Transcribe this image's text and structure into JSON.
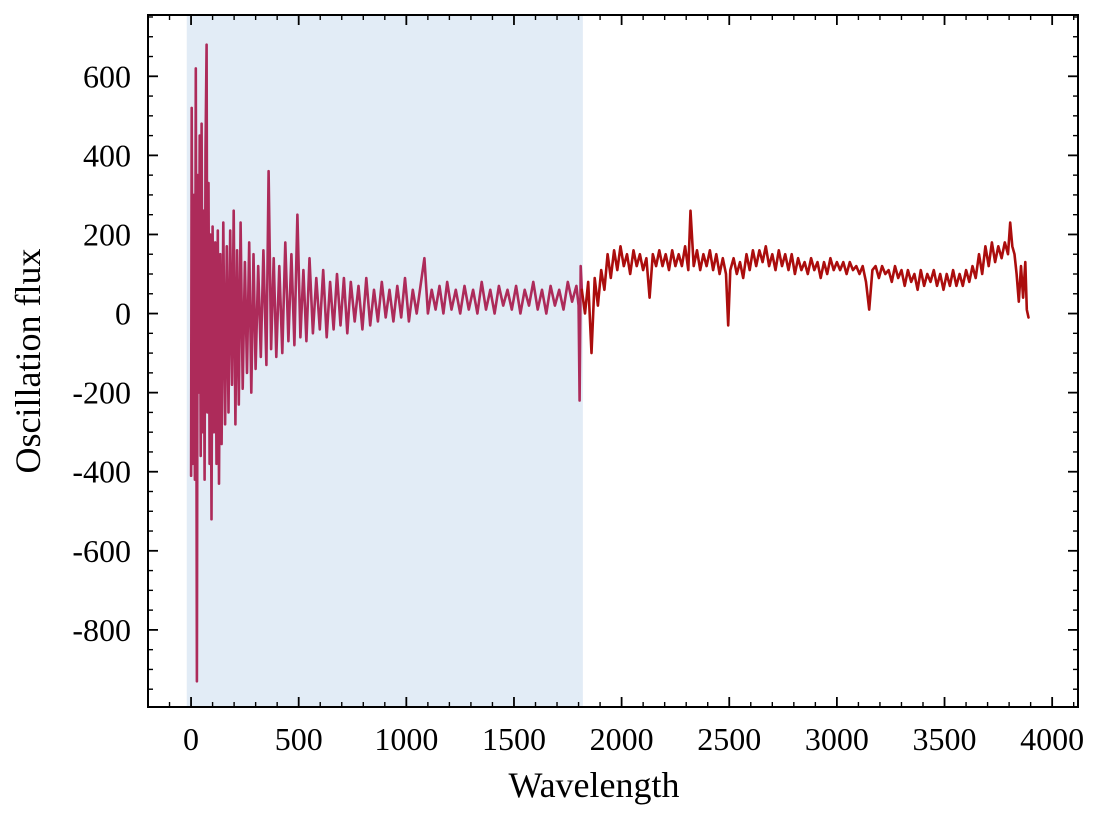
{
  "chart_data": {
    "type": "line",
    "title": "",
    "xlabel": "Wavelength",
    "ylabel": "Oscillation flux",
    "xlim": [
      -200,
      4120
    ],
    "ylim": [
      -995,
      755
    ],
    "xticks": [
      0,
      500,
      1000,
      1500,
      2000,
      2500,
      3000,
      3500,
      4000
    ],
    "xtick_labels": [
      "0",
      "500",
      "1000",
      "1500",
      "2000",
      "2500",
      "3000",
      "3500",
      "4000"
    ],
    "yticks": [
      600,
      400,
      200,
      0,
      -200,
      -400,
      -600,
      -800
    ],
    "ytick_labels": [
      "600",
      "400",
      "200",
      "0",
      "-200",
      "-400",
      "-600",
      "-800"
    ],
    "grid": false,
    "legend": "none",
    "shaded_region": {
      "x": [
        -20,
        1820
      ],
      "color": "#e2ecf6"
    },
    "series": [
      {
        "color": "#ad2b5a",
        "x_range": [
          0,
          1815
        ],
        "points": [
          [
            0,
            -410
          ],
          [
            3,
            520
          ],
          [
            8,
            -380
          ],
          [
            12,
            300
          ],
          [
            18,
            -420
          ],
          [
            22,
            620
          ],
          [
            27,
            -930
          ],
          [
            31,
            350
          ],
          [
            36,
            -200
          ],
          [
            40,
            450
          ],
          [
            45,
            -360
          ],
          [
            49,
            480
          ],
          [
            54,
            -300
          ],
          [
            58,
            260
          ],
          [
            63,
            -420
          ],
          [
            67,
            410
          ],
          [
            72,
            680
          ],
          [
            76,
            -250
          ],
          [
            81,
            330
          ],
          [
            86,
            -380
          ],
          [
            90,
            200
          ],
          [
            95,
            -520
          ],
          [
            100,
            220
          ],
          [
            106,
            -300
          ],
          [
            112,
            180
          ],
          [
            118,
            -380
          ],
          [
            124,
            210
          ],
          [
            130,
            -430
          ],
          [
            136,
            150
          ],
          [
            142,
            -330
          ],
          [
            150,
            230
          ],
          [
            158,
            -280
          ],
          [
            166,
            170
          ],
          [
            174,
            -250
          ],
          [
            182,
            210
          ],
          [
            190,
            -180
          ],
          [
            198,
            260
          ],
          [
            206,
            -280
          ],
          [
            214,
            160
          ],
          [
            222,
            -230
          ],
          [
            230,
            230
          ],
          [
            240,
            -190
          ],
          [
            250,
            130
          ],
          [
            260,
            -150
          ],
          [
            270,
            180
          ],
          [
            280,
            -200
          ],
          [
            290,
            150
          ],
          [
            300,
            -140
          ],
          [
            312,
            120
          ],
          [
            324,
            -110
          ],
          [
            336,
            160
          ],
          [
            350,
            -130
          ],
          [
            360,
            360
          ],
          [
            372,
            -90
          ],
          [
            384,
            140
          ],
          [
            396,
            -110
          ],
          [
            410,
            120
          ],
          [
            424,
            -100
          ],
          [
            438,
            180
          ],
          [
            452,
            -70
          ],
          [
            466,
            150
          ],
          [
            480,
            -80
          ],
          [
            494,
            250
          ],
          [
            508,
            -60
          ],
          [
            522,
            110
          ],
          [
            536,
            -70
          ],
          [
            550,
            140
          ],
          [
            566,
            -50
          ],
          [
            582,
            90
          ],
          [
            598,
            -40
          ],
          [
            614,
            110
          ],
          [
            630,
            -60
          ],
          [
            646,
            80
          ],
          [
            662,
            -40
          ],
          [
            678,
            100
          ],
          [
            694,
            -30
          ],
          [
            710,
            90
          ],
          [
            726,
            -50
          ],
          [
            742,
            80
          ],
          [
            760,
            -20
          ],
          [
            778,
            70
          ],
          [
            796,
            -40
          ],
          [
            814,
            90
          ],
          [
            832,
            -30
          ],
          [
            850,
            60
          ],
          [
            868,
            -20
          ],
          [
            886,
            80
          ],
          [
            904,
            -10
          ],
          [
            922,
            60
          ],
          [
            940,
            -20
          ],
          [
            958,
            70
          ],
          [
            976,
            -10
          ],
          [
            994,
            90
          ],
          [
            1012,
            -20
          ],
          [
            1030,
            60
          ],
          [
            1048,
            0
          ],
          [
            1066,
            70
          ],
          [
            1084,
            140
          ],
          [
            1100,
            0
          ],
          [
            1118,
            60
          ],
          [
            1136,
            10
          ],
          [
            1154,
            70
          ],
          [
            1172,
            0
          ],
          [
            1190,
            80
          ],
          [
            1210,
            10
          ],
          [
            1230,
            60
          ],
          [
            1250,
            0
          ],
          [
            1270,
            70
          ],
          [
            1290,
            10
          ],
          [
            1310,
            60
          ],
          [
            1330,
            0
          ],
          [
            1350,
            80
          ],
          [
            1370,
            10
          ],
          [
            1390,
            60
          ],
          [
            1410,
            0
          ],
          [
            1430,
            70
          ],
          [
            1450,
            20
          ],
          [
            1470,
            60
          ],
          [
            1490,
            10
          ],
          [
            1510,
            70
          ],
          [
            1530,
            0
          ],
          [
            1550,
            60
          ],
          [
            1570,
            20
          ],
          [
            1590,
            80
          ],
          [
            1610,
            10
          ],
          [
            1630,
            60
          ],
          [
            1650,
            0
          ],
          [
            1670,
            70
          ],
          [
            1690,
            20
          ],
          [
            1710,
            60
          ],
          [
            1730,
            10
          ],
          [
            1750,
            80
          ],
          [
            1770,
            30
          ],
          [
            1790,
            70
          ],
          [
            1800,
            20
          ],
          [
            1805,
            -220
          ],
          [
            1810,
            120
          ],
          [
            1815,
            60
          ]
        ]
      },
      {
        "color": "#ab0d0d",
        "x_range": [
          1815,
          3890
        ],
        "points": [
          [
            1815,
            60
          ],
          [
            1830,
            0
          ],
          [
            1845,
            80
          ],
          [
            1860,
            -100
          ],
          [
            1875,
            90
          ],
          [
            1890,
            20
          ],
          [
            1905,
            110
          ],
          [
            1920,
            60
          ],
          [
            1935,
            150
          ],
          [
            1950,
            90
          ],
          [
            1965,
            160
          ],
          [
            1980,
            110
          ],
          [
            1995,
            170
          ],
          [
            2010,
            120
          ],
          [
            2025,
            150
          ],
          [
            2040,
            100
          ],
          [
            2055,
            160
          ],
          [
            2070,
            120
          ],
          [
            2085,
            150
          ],
          [
            2100,
            110
          ],
          [
            2115,
            140
          ],
          [
            2130,
            40
          ],
          [
            2145,
            150
          ],
          [
            2160,
            120
          ],
          [
            2175,
            160
          ],
          [
            2190,
            120
          ],
          [
            2205,
            150
          ],
          [
            2220,
            110
          ],
          [
            2235,
            160
          ],
          [
            2250,
            120
          ],
          [
            2265,
            150
          ],
          [
            2280,
            120
          ],
          [
            2295,
            170
          ],
          [
            2310,
            110
          ],
          [
            2320,
            260
          ],
          [
            2335,
            120
          ],
          [
            2350,
            160
          ],
          [
            2365,
            110
          ],
          [
            2380,
            150
          ],
          [
            2395,
            120
          ],
          [
            2410,
            160
          ],
          [
            2425,
            110
          ],
          [
            2440,
            150
          ],
          [
            2455,
            100
          ],
          [
            2470,
            140
          ],
          [
            2485,
            100
          ],
          [
            2495,
            -30
          ],
          [
            2505,
            110
          ],
          [
            2520,
            140
          ],
          [
            2535,
            100
          ],
          [
            2550,
            130
          ],
          [
            2565,
            90
          ],
          [
            2580,
            150
          ],
          [
            2595,
            110
          ],
          [
            2610,
            160
          ],
          [
            2625,
            120
          ],
          [
            2640,
            160
          ],
          [
            2655,
            130
          ],
          [
            2670,
            170
          ],
          [
            2685,
            120
          ],
          [
            2700,
            150
          ],
          [
            2715,
            110
          ],
          [
            2730,
            160
          ],
          [
            2745,
            120
          ],
          [
            2760,
            150
          ],
          [
            2775,
            110
          ],
          [
            2790,
            150
          ],
          [
            2805,
            100
          ],
          [
            2820,
            140
          ],
          [
            2835,
            110
          ],
          [
            2850,
            130
          ],
          [
            2865,
            100
          ],
          [
            2880,
            140
          ],
          [
            2895,
            110
          ],
          [
            2910,
            130
          ],
          [
            2925,
            90
          ],
          [
            2940,
            130
          ],
          [
            2955,
            100
          ],
          [
            2970,
            140
          ],
          [
            2985,
            110
          ],
          [
            3000,
            130
          ],
          [
            3015,
            110
          ],
          [
            3030,
            130
          ],
          [
            3045,
            100
          ],
          [
            3060,
            130
          ],
          [
            3075,
            110
          ],
          [
            3090,
            120
          ],
          [
            3105,
            100
          ],
          [
            3120,
            120
          ],
          [
            3135,
            80
          ],
          [
            3150,
            10
          ],
          [
            3165,
            110
          ],
          [
            3180,
            120
          ],
          [
            3195,
            90
          ],
          [
            3210,
            120
          ],
          [
            3225,
            100
          ],
          [
            3240,
            110
          ],
          [
            3255,
            80
          ],
          [
            3270,
            120
          ],
          [
            3285,
            90
          ],
          [
            3300,
            110
          ],
          [
            3315,
            70
          ],
          [
            3330,
            110
          ],
          [
            3345,
            80
          ],
          [
            3360,
            100
          ],
          [
            3375,
            60
          ],
          [
            3390,
            110
          ],
          [
            3405,
            70
          ],
          [
            3420,
            100
          ],
          [
            3435,
            80
          ],
          [
            3450,
            110
          ],
          [
            3465,
            70
          ],
          [
            3480,
            100
          ],
          [
            3495,
            60
          ],
          [
            3510,
            100
          ],
          [
            3525,
            70
          ],
          [
            3540,
            110
          ],
          [
            3555,
            70
          ],
          [
            3570,
            100
          ],
          [
            3585,
            70
          ],
          [
            3600,
            110
          ],
          [
            3615,
            80
          ],
          [
            3630,
            120
          ],
          [
            3645,
            90
          ],
          [
            3660,
            150
          ],
          [
            3675,
            100
          ],
          [
            3690,
            170
          ],
          [
            3705,
            120
          ],
          [
            3720,
            180
          ],
          [
            3735,
            130
          ],
          [
            3750,
            170
          ],
          [
            3765,
            140
          ],
          [
            3780,
            180
          ],
          [
            3795,
            150
          ],
          [
            3805,
            230
          ],
          [
            3815,
            170
          ],
          [
            3825,
            150
          ],
          [
            3835,
            100
          ],
          [
            3845,
            30
          ],
          [
            3855,
            120
          ],
          [
            3865,
            40
          ],
          [
            3875,
            130
          ],
          [
            3882,
            10
          ],
          [
            3890,
            -10
          ]
        ]
      }
    ]
  }
}
